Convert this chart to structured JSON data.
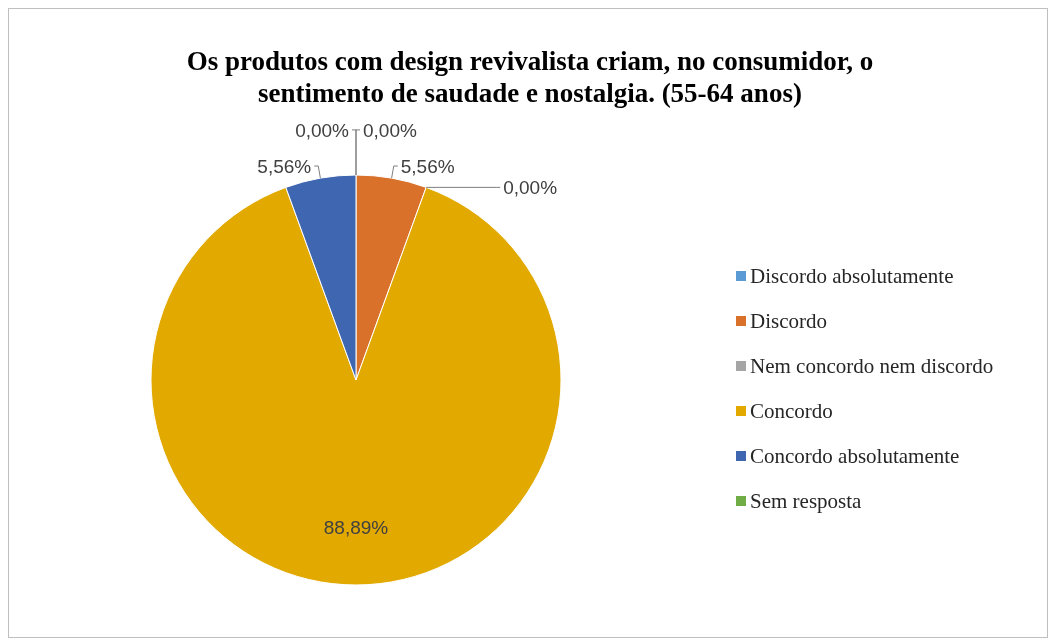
{
  "chart_data": {
    "type": "pie",
    "title": "Os produtos com design revivalista criam, no consumidor, o sentimento de saudade e nostalgia. (55-64 anos)",
    "categories": [
      "Discordo absolutamente",
      "Discordo",
      "Nem concordo nem discordo",
      "Concordo",
      "Concordo absolutamente",
      "Sem resposta"
    ],
    "values": [
      0,
      5.56,
      0,
      88.89,
      5.56,
      0
    ],
    "value_labels": [
      "0,00%",
      "5,56%",
      "0,00%",
      "88,89%",
      "5,56%",
      "0,00%"
    ],
    "colors": [
      "#5b9bd5",
      "#d9712b",
      "#a5a5a5",
      "#e2aa00",
      "#3f66b0",
      "#70ad47"
    ],
    "legend": "right"
  }
}
